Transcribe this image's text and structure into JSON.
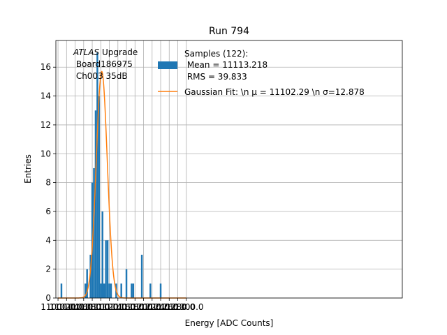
{
  "chart_data": {
    "type": "bar",
    "title": "Run 794",
    "xlabel": "Energy [ADC Counts]",
    "ylabel": "Entries",
    "xlim": [
      10995,
      11805
    ],
    "ylim": [
      0,
      17.85
    ],
    "grid": true,
    "bin_width": 4,
    "x_ticks": [
      11000,
      11020,
      11040,
      11060,
      11080,
      11100,
      11120,
      11140,
      11160,
      11180,
      11200,
      11220,
      11240,
      11260,
      11280,
      11300
    ],
    "x_tick_labels": [
      "11000.0",
      "11020.0",
      "11040.0",
      "11060.0",
      "11080.0",
      "11100.0",
      "11120.0",
      "11140.0",
      "11160.0",
      "11180.0",
      "11200.0",
      "11220.0",
      "11240.0",
      "11260.0",
      "11280.0",
      "11300.0"
    ],
    "y_ticks": [
      0,
      2,
      4,
      6,
      8,
      10,
      12,
      14,
      16
    ],
    "y_tick_labels": [
      "0",
      "2",
      "4",
      "6",
      "8",
      "10",
      "12",
      "14",
      "16"
    ],
    "bins": [
      {
        "x": 11006,
        "value": 1
      },
      {
        "x": 11062,
        "value": 1
      },
      {
        "x": 11066,
        "value": 2
      },
      {
        "x": 11074,
        "value": 3
      },
      {
        "x": 11078,
        "value": 8
      },
      {
        "x": 11082,
        "value": 9
      },
      {
        "x": 11086,
        "value": 13
      },
      {
        "x": 11090,
        "value": 17
      },
      {
        "x": 11094,
        "value": 14
      },
      {
        "x": 11098,
        "value": 1
      },
      {
        "x": 11102,
        "value": 6
      },
      {
        "x": 11106,
        "value": 1
      },
      {
        "x": 11110,
        "value": 4
      },
      {
        "x": 11114,
        "value": 4
      },
      {
        "x": 11118,
        "value": 1
      },
      {
        "x": 11122,
        "value": 1
      },
      {
        "x": 11134,
        "value": 1
      },
      {
        "x": 11146,
        "value": 1
      },
      {
        "x": 11158,
        "value": 2
      },
      {
        "x": 11170,
        "value": 1
      },
      {
        "x": 11174,
        "value": 1
      },
      {
        "x": 11194,
        "value": 3
      },
      {
        "x": 11214,
        "value": 1
      },
      {
        "x": 11238,
        "value": 1
      }
    ],
    "fit": {
      "name": "Gaussian Fit: \\n $\\mu$ = 11102.29 \\n $\\sigma$=12.878",
      "mu": 11102.29,
      "sigma": 12.878,
      "amplitude": 15.7
    },
    "legend": {
      "placement": "top-right",
      "entries": [
        {
          "type": "patch",
          "lines": [
            "Samples (122):",
            " Mean = 11113.218",
            " RMS = 39.833"
          ]
        },
        {
          "type": "line",
          "label": "Gaussian Fit: \\n μ = 11102.29 \\n σ=12.878"
        }
      ]
    },
    "annotation": {
      "italic": "ATLAS",
      "line1_rest": " Upgrade",
      "line2": " Board186975",
      "line3": " Ch003 35dB"
    },
    "colors": {
      "bar": "#1f77b4",
      "fit": "#ff7f0e",
      "grid": "#b0b0b0"
    }
  }
}
